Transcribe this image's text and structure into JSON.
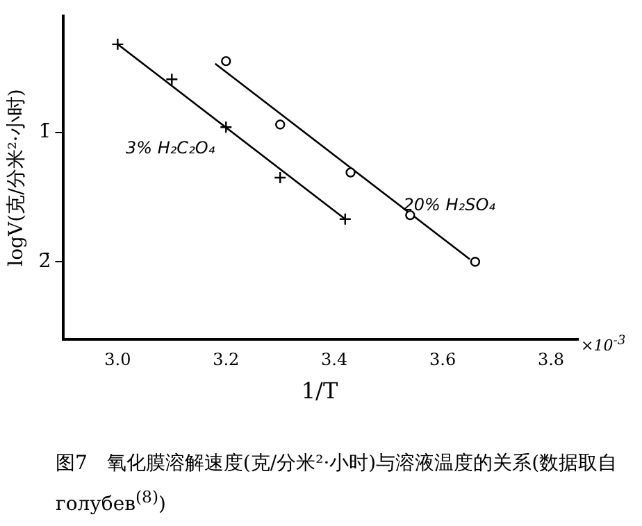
{
  "chart_data": {
    "type": "scatter",
    "xlabel": "1/T",
    "ylabel": "logV(克/分米²·小时)",
    "xlim": [
      2.9,
      3.85
    ],
    "xticks": [
      {
        "value": 3.0,
        "label": "3.0"
      },
      {
        "value": 3.2,
        "label": "3.2"
      },
      {
        "value": 3.4,
        "label": "3.4"
      },
      {
        "value": 3.6,
        "label": "3.6"
      },
      {
        "value": 3.8,
        "label": "3.8"
      }
    ],
    "ylim": [
      -2.6,
      -0.1
    ],
    "yticks": [
      {
        "value": -1,
        "label": "1̄"
      },
      {
        "value": -2,
        "label": "2̄"
      }
    ],
    "grid": false,
    "legend": false,
    "series": [
      {
        "name": "3% H₂C₂O₄",
        "type": "scatter",
        "marker": "cross",
        "color": "#000000",
        "x": [
          3.0,
          3.1,
          3.2,
          3.3,
          3.42
        ],
        "values": [
          -0.32,
          -0.59,
          -0.96,
          -1.35,
          -1.67
        ]
      },
      {
        "name": "20% H₂SO₄",
        "type": "scatter",
        "marker": "circle",
        "color": "#000000",
        "x": [
          3.2,
          3.3,
          3.43,
          3.54,
          3.66
        ],
        "values": [
          -0.45,
          -0.94,
          -1.31,
          -1.64,
          -2.0
        ]
      },
      {
        "type": "line",
        "marker": "none",
        "color": "#000000",
        "x": [
          3.0,
          3.42
        ],
        "values": [
          -0.32,
          -1.67
        ]
      },
      {
        "type": "line",
        "marker": "none",
        "color": "#000000",
        "x": [
          3.18,
          3.65
        ],
        "values": [
          -0.47,
          -1.98
        ]
      }
    ],
    "annotations": [
      "×10$^{-3}$",
      "图7　氧化膜溶解速度(克/分米²·小时)与溶液温度的关系(数据取自голубев$^{(8)}$)"
    ]
  }
}
